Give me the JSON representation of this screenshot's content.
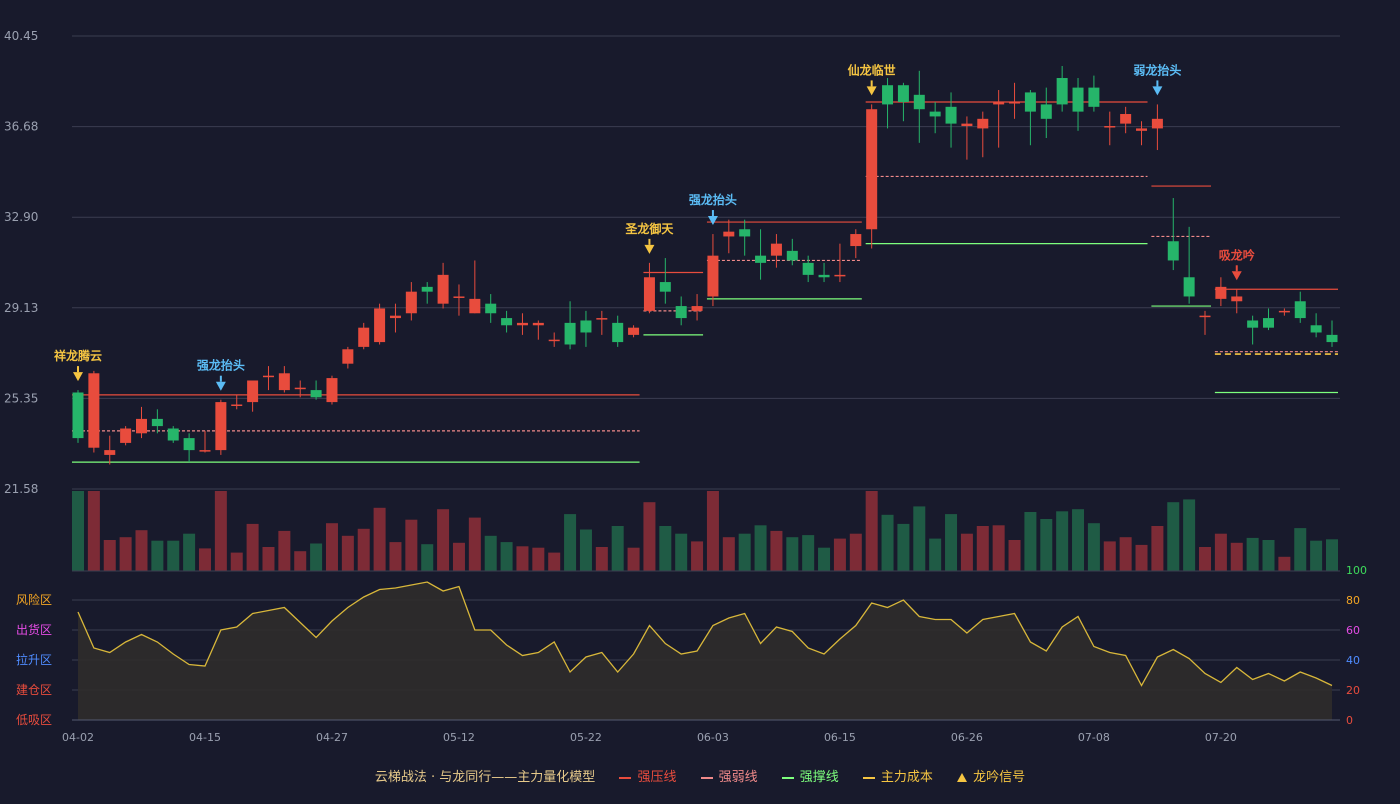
{
  "chart_data": {
    "type": "candlestick",
    "x_tick_labels": [
      "04-02",
      "04-15",
      "04-27",
      "05-12",
      "05-22",
      "06-03",
      "06-15",
      "06-26",
      "07-08",
      "07-20"
    ],
    "y_tick_labels": [
      "40.45",
      "36.68",
      "32.90",
      "29.13",
      "25.35",
      "21.58"
    ],
    "ylim": [
      21.58,
      40.45
    ],
    "osc_tick_labels": [
      "100",
      "80",
      "60",
      "40",
      "20",
      "0"
    ],
    "osc_zones": [
      "风险区",
      "出货区",
      "拉升区",
      "建仓区",
      "低吸区"
    ],
    "candles": [
      [
        25.6,
        23.7,
        25.7,
        23.5
      ],
      [
        23.3,
        26.4,
        26.5,
        23.1
      ],
      [
        23.0,
        23.2,
        23.8,
        22.6
      ],
      [
        23.5,
        24.1,
        24.2,
        23.4
      ],
      [
        23.9,
        24.5,
        25.0,
        23.7
      ],
      [
        24.5,
        24.2,
        24.9,
        23.9
      ],
      [
        24.1,
        23.6,
        24.2,
        23.5
      ],
      [
        23.7,
        23.2,
        23.9,
        22.7
      ],
      [
        23.2,
        23.2,
        24.0,
        23.1
      ],
      [
        23.2,
        25.2,
        25.3,
        23.0
      ],
      [
        25.1,
        25.1,
        25.5,
        24.9
      ],
      [
        25.2,
        26.1,
        26.1,
        24.8
      ],
      [
        26.3,
        26.3,
        26.7,
        25.7
      ],
      [
        25.7,
        26.4,
        26.7,
        25.6
      ],
      [
        25.8,
        25.8,
        26.1,
        25.4
      ],
      [
        25.7,
        25.4,
        26.1,
        25.3
      ],
      [
        25.2,
        26.2,
        26.3,
        25.1
      ],
      [
        26.8,
        27.4,
        27.5,
        26.6
      ],
      [
        27.5,
        28.3,
        28.5,
        27.4
      ],
      [
        27.7,
        29.1,
        29.3,
        27.6
      ],
      [
        28.7,
        28.8,
        29.3,
        28.1
      ],
      [
        28.9,
        29.8,
        30.2,
        28.6
      ],
      [
        30.0,
        29.8,
        30.2,
        29.3
      ],
      [
        29.3,
        30.5,
        31.0,
        29.1
      ],
      [
        29.6,
        29.6,
        30.1,
        28.8
      ],
      [
        28.9,
        29.5,
        31.1,
        28.9
      ],
      [
        29.3,
        28.9,
        29.7,
        28.5
      ],
      [
        28.7,
        28.4,
        29.0,
        28.1
      ],
      [
        28.4,
        28.5,
        28.9,
        28.0
      ],
      [
        28.4,
        28.5,
        28.6,
        27.8
      ],
      [
        27.8,
        27.8,
        28.1,
        27.5
      ],
      [
        28.5,
        27.6,
        29.4,
        27.4
      ],
      [
        28.6,
        28.1,
        29.0,
        27.5
      ],
      [
        28.7,
        28.7,
        29.0,
        28.0
      ],
      [
        28.5,
        27.7,
        28.8,
        27.5
      ],
      [
        28.0,
        28.3,
        28.4,
        27.9
      ],
      [
        29.0,
        30.4,
        31.0,
        28.9
      ],
      [
        30.2,
        29.8,
        31.2,
        29.3
      ],
      [
        29.2,
        28.7,
        29.6,
        28.4
      ],
      [
        29.0,
        29.2,
        29.7,
        28.6
      ],
      [
        29.6,
        31.3,
        32.2,
        29.2
      ],
      [
        32.1,
        32.3,
        32.8,
        31.4
      ],
      [
        32.4,
        32.1,
        32.8,
        31.3
      ],
      [
        31.3,
        31.0,
        32.4,
        30.3
      ],
      [
        31.3,
        31.8,
        32.2,
        30.8
      ],
      [
        31.5,
        31.1,
        32.0,
        30.9
      ],
      [
        31.0,
        30.5,
        31.3,
        30.2
      ],
      [
        30.5,
        30.4,
        31.0,
        30.2
      ],
      [
        30.5,
        30.5,
        31.8,
        30.2
      ],
      [
        31.7,
        32.2,
        32.4,
        31.2
      ],
      [
        32.4,
        37.4,
        37.6,
        31.6
      ],
      [
        38.4,
        37.6,
        38.7,
        36.6
      ],
      [
        38.4,
        37.7,
        38.5,
        36.9
      ],
      [
        38.0,
        37.4,
        39.0,
        36.0
      ],
      [
        37.3,
        37.1,
        37.7,
        36.4
      ],
      [
        37.5,
        36.8,
        38.1,
        35.8
      ],
      [
        36.7,
        36.8,
        37.1,
        35.3
      ],
      [
        36.6,
        37.0,
        37.3,
        35.4
      ],
      [
        37.6,
        37.7,
        38.2,
        35.8
      ],
      [
        37.7,
        37.7,
        38.5,
        37.0
      ],
      [
        38.1,
        37.3,
        38.2,
        35.9
      ],
      [
        37.6,
        37.0,
        38.3,
        36.2
      ],
      [
        38.7,
        37.6,
        39.2,
        37.3
      ],
      [
        38.3,
        37.3,
        38.7,
        36.5
      ],
      [
        38.3,
        37.5,
        38.8,
        37.3
      ],
      [
        36.7,
        36.7,
        37.3,
        35.9
      ],
      [
        36.8,
        37.2,
        37.5,
        36.4
      ],
      [
        36.5,
        36.6,
        36.9,
        35.9
      ],
      [
        36.6,
        37.0,
        37.6,
        35.7
      ],
      [
        31.9,
        31.1,
        33.7,
        30.7
      ],
      [
        30.4,
        29.6,
        32.5,
        29.3
      ],
      [
        28.8,
        28.8,
        29.0,
        28.0
      ],
      [
        29.5,
        30.0,
        30.4,
        29.2
      ],
      [
        29.4,
        29.6,
        29.9,
        28.9
      ],
      [
        28.6,
        28.3,
        28.8,
        27.6
      ],
      [
        28.7,
        28.3,
        29.1,
        28.2
      ],
      [
        29.0,
        29.0,
        29.1,
        28.8
      ],
      [
        29.4,
        28.7,
        29.8,
        28.5
      ],
      [
        28.4,
        28.1,
        28.9,
        27.9
      ],
      [
        28.0,
        27.7,
        28.6,
        27.5
      ]
    ],
    "volume_color_up": "#7d2b36",
    "volume_color_down": "#1f5b45",
    "series": [
      {
        "key": "strong_pressure",
        "color": "#e84c3d"
      },
      {
        "key": "strong_weak",
        "color": "#f08a8a"
      },
      {
        "key": "strong_support",
        "color": "#7dff7d"
      },
      {
        "key": "main_cost",
        "color": "#f5c542"
      }
    ],
    "levels": [
      {
        "key": "strong_pressure",
        "segments": [
          [
            0,
            35,
            25.5
          ],
          [
            36,
            39,
            30.6
          ],
          [
            40,
            49,
            32.7
          ],
          [
            50,
            67,
            37.7
          ],
          [
            68,
            71,
            34.2
          ],
          [
            72,
            79,
            29.9
          ]
        ]
      },
      {
        "key": "strong_weak",
        "segments": [
          [
            0,
            35,
            24.0
          ],
          [
            36,
            39,
            29.0
          ],
          [
            40,
            49,
            31.1
          ],
          [
            50,
            67,
            34.6
          ],
          [
            68,
            71,
            32.1
          ],
          [
            72,
            79,
            27.3
          ]
        ]
      },
      {
        "key": "strong_support",
        "segments": [
          [
            0,
            35,
            22.7
          ],
          [
            36,
            39,
            28.0
          ],
          [
            40,
            49,
            29.5
          ],
          [
            50,
            67,
            31.8
          ],
          [
            68,
            71,
            29.2
          ],
          [
            72,
            79,
            25.6
          ]
        ]
      },
      {
        "key": "main_cost",
        "segments": [
          [
            72,
            79,
            27.2
          ]
        ]
      }
    ],
    "signals": [
      {
        "index": 0,
        "label": "祥龙腾云",
        "color": "#f5c542"
      },
      {
        "index": 9,
        "label": "强龙抬头",
        "color": "#5bbcf5"
      },
      {
        "index": 36,
        "label": "圣龙御天",
        "color": "#f5c542"
      },
      {
        "index": 40,
        "label": "强龙抬头",
        "color": "#5bbcf5"
      },
      {
        "index": 50,
        "label": "仙龙临世",
        "color": "#f5c542"
      },
      {
        "index": 68,
        "label": "弱龙抬头",
        "color": "#5bbcf5"
      },
      {
        "index": 73,
        "label": "吸龙吟",
        "color": "#e84c3d"
      }
    ],
    "oscillator": [
      72,
      48,
      45,
      52,
      57,
      52,
      44,
      37,
      36,
      60,
      62,
      71,
      73,
      75,
      65,
      55,
      66,
      75,
      82,
      87,
      88,
      90,
      92,
      86,
      89,
      60,
      60,
      50,
      43,
      45,
      52,
      32,
      42,
      45,
      32,
      44,
      63,
      51,
      44,
      46,
      63,
      68,
      71,
      51,
      62,
      59,
      48,
      44,
      54,
      63,
      78,
      75,
      80,
      69,
      67,
      67,
      58,
      67,
      69,
      71,
      52,
      46,
      62,
      69,
      49,
      45,
      43,
      23,
      42,
      47,
      41,
      31,
      25,
      35,
      27,
      31,
      26,
      32,
      28,
      23
    ],
    "legend": {
      "title": "云梯战法 · 与龙同行——主力量化模型",
      "items": [
        {
          "label": "强压线",
          "key": "strong_pressure"
        },
        {
          "label": "强弱线",
          "key": "strong_weak"
        },
        {
          "label": "强撑线",
          "key": "strong_support"
        },
        {
          "label": "主力成本",
          "key": "main_cost"
        },
        {
          "label": "龙吟信号",
          "key": "signal"
        }
      ]
    },
    "colors": {
      "up": "#e84c3d",
      "down": "#26b56a",
      "grid": "#3a3d50",
      "axis_text": "#9aa0b0",
      "oscillator_line": "#d8b73a",
      "oscillator_fill": "#2f2c2b",
      "osc_tick_green": "#3ddc5b",
      "osc_tick_orange": "#f5a623",
      "osc_tick_pink": "#e64ce6",
      "osc_tick_blue": "#4f8cff",
      "osc_tick_red": "#e84c3d"
    }
  }
}
